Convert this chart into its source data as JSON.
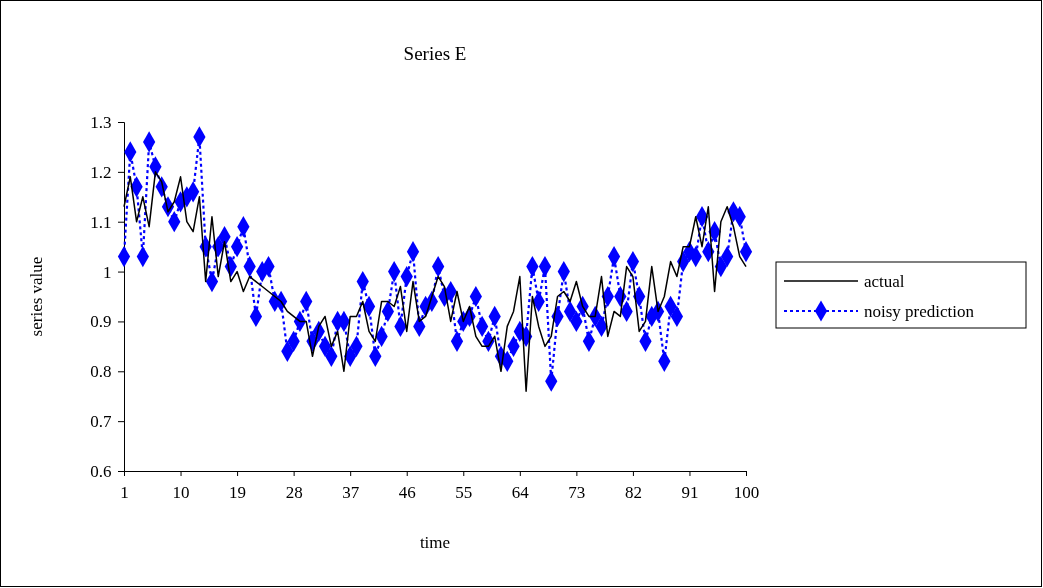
{
  "chart_data": {
    "type": "line",
    "title": "Series E",
    "xlabel": "time",
    "ylabel": "series value",
    "x": [
      1,
      2,
      3,
      4,
      5,
      6,
      7,
      8,
      9,
      10,
      11,
      12,
      13,
      14,
      15,
      16,
      17,
      18,
      19,
      20,
      21,
      22,
      23,
      24,
      25,
      26,
      27,
      28,
      29,
      30,
      31,
      32,
      33,
      34,
      35,
      36,
      37,
      38,
      39,
      40,
      41,
      42,
      43,
      44,
      45,
      46,
      47,
      48,
      49,
      50,
      51,
      52,
      53,
      54,
      55,
      56,
      57,
      58,
      59,
      60,
      61,
      62,
      63,
      64,
      65,
      66,
      67,
      68,
      69,
      70,
      71,
      72,
      73,
      74,
      75,
      76,
      77,
      78,
      79,
      80,
      81,
      82,
      83,
      84,
      85,
      86,
      87,
      88,
      89,
      90,
      91,
      92,
      93,
      94,
      95,
      96,
      97,
      98,
      99,
      100
    ],
    "xlim": [
      1,
      100
    ],
    "xticks": [
      1,
      10,
      19,
      28,
      37,
      46,
      55,
      64,
      73,
      82,
      91,
      100
    ],
    "ylim": [
      0.6,
      1.3
    ],
    "yticks": [
      0.6,
      0.7,
      0.8,
      0.9,
      1,
      1.1,
      1.2,
      1.3
    ],
    "grid": false,
    "legend": "right",
    "series": [
      {
        "name": "actual",
        "color": "#000000",
        "line_style": "solid",
        "marker": "none",
        "values": [
          1.13,
          1.19,
          1.1,
          1.15,
          1.09,
          1.2,
          1.18,
          1.12,
          1.14,
          1.19,
          1.1,
          1.08,
          1.15,
          0.98,
          1.11,
          0.99,
          1.06,
          0.98,
          1.0,
          0.96,
          0.99,
          0.98,
          0.97,
          0.96,
          0.95,
          0.94,
          0.92,
          0.91,
          0.9,
          0.9,
          0.83,
          0.89,
          0.91,
          0.85,
          0.88,
          0.8,
          0.91,
          0.91,
          0.94,
          0.88,
          0.86,
          0.94,
          0.94,
          0.93,
          0.97,
          0.88,
          0.98,
          0.9,
          0.91,
          0.95,
          0.99,
          0.97,
          0.9,
          0.96,
          0.9,
          0.93,
          0.87,
          0.85,
          0.85,
          0.87,
          0.8,
          0.89,
          0.92,
          0.99,
          0.76,
          0.95,
          0.89,
          0.85,
          0.87,
          0.95,
          0.96,
          0.94,
          0.98,
          0.93,
          0.91,
          0.91,
          0.99,
          0.87,
          0.92,
          0.91,
          1.01,
          0.99,
          0.88,
          0.9,
          1.01,
          0.92,
          0.95,
          1.02,
          0.99,
          1.05,
          1.05,
          1.11,
          1.05,
          1.13,
          0.96,
          1.1,
          1.13,
          1.09,
          1.03,
          1.01
        ]
      },
      {
        "name": "noisy prediction",
        "color": "#0000ff",
        "line_style": "dotted",
        "marker": "diamond",
        "values": [
          1.03,
          1.24,
          1.17,
          1.03,
          1.26,
          1.21,
          1.17,
          1.13,
          1.1,
          1.14,
          1.15,
          1.16,
          1.27,
          1.05,
          0.98,
          1.05,
          1.07,
          1.01,
          1.05,
          1.09,
          1.01,
          0.91,
          1.0,
          1.01,
          0.94,
          0.94,
          0.84,
          0.86,
          0.9,
          0.94,
          0.86,
          0.88,
          0.85,
          0.83,
          0.9,
          0.9,
          0.83,
          0.85,
          0.98,
          0.93,
          0.83,
          0.87,
          0.92,
          1.0,
          0.89,
          0.99,
          1.04,
          0.89,
          0.93,
          0.94,
          1.01,
          0.95,
          0.96,
          0.86,
          0.9,
          0.91,
          0.95,
          0.89,
          0.86,
          0.91,
          0.83,
          0.82,
          0.85,
          0.88,
          0.87,
          1.01,
          0.94,
          1.01,
          0.78,
          0.91,
          1.0,
          0.92,
          0.9,
          0.93,
          0.86,
          0.91,
          0.89,
          0.95,
          1.03,
          0.95,
          0.92,
          1.02,
          0.95,
          0.86,
          0.91,
          0.92,
          0.82,
          0.93,
          0.91,
          1.02,
          1.04,
          1.03,
          1.11,
          1.04,
          1.08,
          1.01,
          1.03,
          1.12,
          1.11,
          1.04
        ]
      }
    ]
  }
}
